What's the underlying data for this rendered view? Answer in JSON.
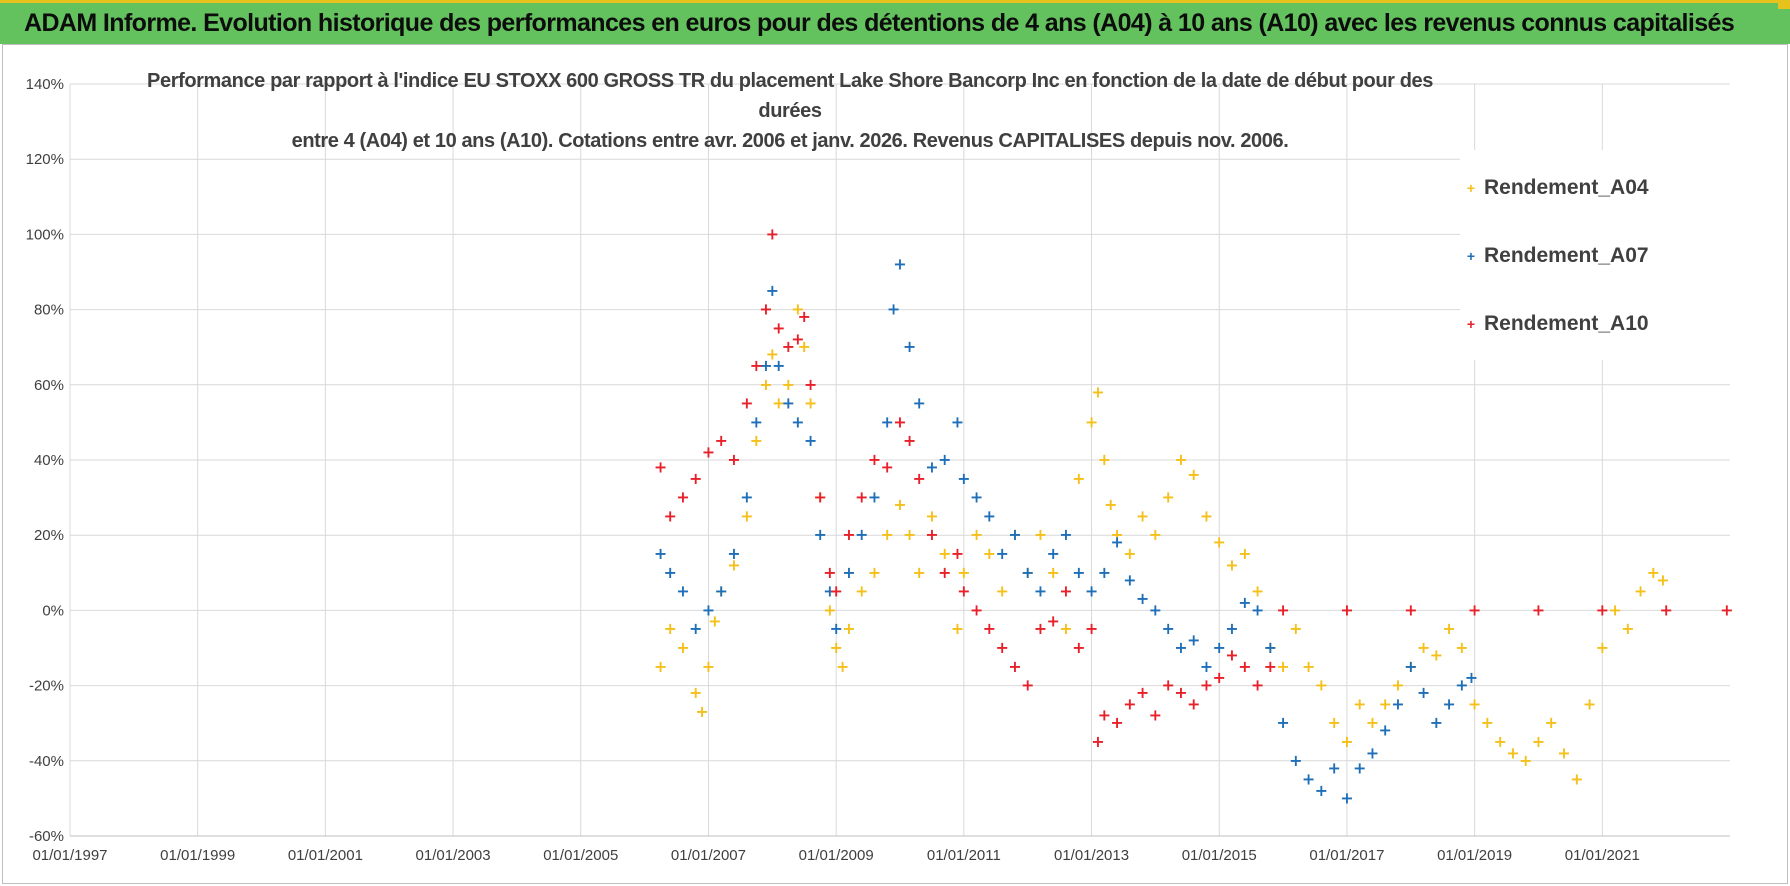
{
  "header": {
    "title": "ADAM Informe. Evolution historique des performances en euros pour des détentions de 4 ans (A04) à 10 ans (A10) avec les revenus connus capitalisés"
  },
  "chart_data": {
    "type": "scatter",
    "title_line1": "Performance par rapport à l'indice EU STOXX 600 GROSS TR  du placement Lake Shore Bancorp Inc en fonction de la date de début pour des durées",
    "title_line2": "entre 4 (A04) et 10 ans (A10).  Cotations entre avr. 2006 et janv. 2026. Revenus CAPITALISES depuis nov. 2006.",
    "xlabel": "",
    "ylabel": "",
    "xlim": [
      1997.0,
      2023.0
    ],
    "ylim": [
      -60,
      140
    ],
    "x_ticks": [
      "01/01/1997",
      "01/01/1999",
      "01/01/2001",
      "01/01/2003",
      "01/01/2005",
      "01/01/2007",
      "01/01/2009",
      "01/01/2011",
      "01/01/2013",
      "01/01/2015",
      "01/01/2017",
      "01/01/2019",
      "01/01/2021"
    ],
    "y_ticks": [
      "140%",
      "120%",
      "100%",
      "80%",
      "60%",
      "40%",
      "20%",
      "0%",
      "-20%",
      "-40%",
      "-60%"
    ],
    "legend_position": "top-right",
    "series": [
      {
        "name": "Rendement_A04",
        "color": "#f5c01a",
        "points": [
          [
            2006.25,
            -15
          ],
          [
            2006.4,
            -5
          ],
          [
            2006.6,
            -10
          ],
          [
            2006.8,
            -22
          ],
          [
            2006.9,
            -27
          ],
          [
            2007.0,
            -15
          ],
          [
            2007.1,
            -3
          ],
          [
            2007.2,
            5
          ],
          [
            2007.4,
            12
          ],
          [
            2007.6,
            25
          ],
          [
            2007.75,
            45
          ],
          [
            2007.9,
            60
          ],
          [
            2008.0,
            68
          ],
          [
            2008.1,
            55
          ],
          [
            2008.25,
            60
          ],
          [
            2008.4,
            80
          ],
          [
            2008.5,
            70
          ],
          [
            2008.6,
            55
          ],
          [
            2008.75,
            30
          ],
          [
            2008.9,
            0
          ],
          [
            2009.0,
            -10
          ],
          [
            2009.1,
            -15
          ],
          [
            2009.2,
            -5
          ],
          [
            2009.4,
            5
          ],
          [
            2009.6,
            10
          ],
          [
            2009.8,
            20
          ],
          [
            2010.0,
            28
          ],
          [
            2010.15,
            20
          ],
          [
            2010.3,
            10
          ],
          [
            2010.5,
            25
          ],
          [
            2010.7,
            15
          ],
          [
            2010.9,
            -5
          ],
          [
            2011.0,
            10
          ],
          [
            2011.2,
            20
          ],
          [
            2011.4,
            15
          ],
          [
            2011.6,
            5
          ],
          [
            2011.8,
            20
          ],
          [
            2012.0,
            10
          ],
          [
            2012.2,
            20
          ],
          [
            2012.4,
            10
          ],
          [
            2012.6,
            -5
          ],
          [
            2012.8,
            35
          ],
          [
            2013.0,
            50
          ],
          [
            2013.1,
            58
          ],
          [
            2013.2,
            40
          ],
          [
            2013.3,
            28
          ],
          [
            2013.4,
            20
          ],
          [
            2013.6,
            15
          ],
          [
            2013.8,
            25
          ],
          [
            2014.0,
            20
          ],
          [
            2014.2,
            30
          ],
          [
            2014.4,
            40
          ],
          [
            2014.6,
            36
          ],
          [
            2014.8,
            25
          ],
          [
            2015.0,
            18
          ],
          [
            2015.2,
            12
          ],
          [
            2015.4,
            15
          ],
          [
            2015.6,
            5
          ],
          [
            2015.8,
            -10
          ],
          [
            2016.0,
            -15
          ],
          [
            2016.2,
            -5
          ],
          [
            2016.4,
            -15
          ],
          [
            2016.6,
            -20
          ],
          [
            2016.8,
            -30
          ],
          [
            2017.0,
            -35
          ],
          [
            2017.2,
            -25
          ],
          [
            2017.4,
            -30
          ],
          [
            2017.6,
            -25
          ],
          [
            2017.8,
            -20
          ],
          [
            2018.0,
            -15
          ],
          [
            2018.2,
            -10
          ],
          [
            2018.4,
            -12
          ],
          [
            2018.6,
            -5
          ],
          [
            2018.8,
            -10
          ],
          [
            2019.0,
            -25
          ],
          [
            2019.2,
            -30
          ],
          [
            2019.4,
            -35
          ],
          [
            2019.6,
            -38
          ],
          [
            2019.8,
            -40
          ],
          [
            2020.0,
            -35
          ],
          [
            2020.2,
            -30
          ],
          [
            2020.4,
            -38
          ],
          [
            2020.6,
            -45
          ],
          [
            2020.8,
            -25
          ],
          [
            2021.0,
            -10
          ],
          [
            2021.2,
            0
          ],
          [
            2021.4,
            -5
          ],
          [
            2021.6,
            5
          ],
          [
            2021.8,
            10
          ],
          [
            2021.95,
            8
          ]
        ]
      },
      {
        "name": "Rendement_A07",
        "color": "#1f6fb8",
        "points": [
          [
            2006.25,
            15
          ],
          [
            2006.4,
            10
          ],
          [
            2006.6,
            5
          ],
          [
            2006.8,
            -5
          ],
          [
            2007.0,
            0
          ],
          [
            2007.2,
            5
          ],
          [
            2007.4,
            15
          ],
          [
            2007.6,
            30
          ],
          [
            2007.75,
            50
          ],
          [
            2007.9,
            65
          ],
          [
            2008.0,
            85
          ],
          [
            2008.1,
            65
          ],
          [
            2008.25,
            55
          ],
          [
            2008.4,
            50
          ],
          [
            2008.6,
            45
          ],
          [
            2008.75,
            20
          ],
          [
            2008.9,
            5
          ],
          [
            2009.0,
            -5
          ],
          [
            2009.2,
            10
          ],
          [
            2009.4,
            20
          ],
          [
            2009.6,
            30
          ],
          [
            2009.8,
            50
          ],
          [
            2009.9,
            80
          ],
          [
            2010.0,
            92
          ],
          [
            2010.15,
            70
          ],
          [
            2010.3,
            55
          ],
          [
            2010.5,
            38
          ],
          [
            2010.7,
            40
          ],
          [
            2010.9,
            50
          ],
          [
            2011.0,
            35
          ],
          [
            2011.2,
            30
          ],
          [
            2011.4,
            25
          ],
          [
            2011.6,
            15
          ],
          [
            2011.8,
            20
          ],
          [
            2012.0,
            10
          ],
          [
            2012.2,
            5
          ],
          [
            2012.4,
            15
          ],
          [
            2012.6,
            20
          ],
          [
            2012.8,
            10
          ],
          [
            2013.0,
            5
          ],
          [
            2013.2,
            10
          ],
          [
            2013.4,
            18
          ],
          [
            2013.6,
            8
          ],
          [
            2013.8,
            3
          ],
          [
            2014.0,
            0
          ],
          [
            2014.2,
            -5
          ],
          [
            2014.4,
            -10
          ],
          [
            2014.6,
            -8
          ],
          [
            2014.8,
            -15
          ],
          [
            2015.0,
            -10
          ],
          [
            2015.2,
            -5
          ],
          [
            2015.4,
            2
          ],
          [
            2015.6,
            0
          ],
          [
            2015.8,
            -10
          ],
          [
            2016.0,
            -30
          ],
          [
            2016.2,
            -40
          ],
          [
            2016.4,
            -45
          ],
          [
            2016.6,
            -48
          ],
          [
            2016.8,
            -42
          ],
          [
            2017.0,
            -50
          ],
          [
            2017.2,
            -42
          ],
          [
            2017.4,
            -38
          ],
          [
            2017.6,
            -32
          ],
          [
            2017.8,
            -25
          ],
          [
            2018.0,
            -15
          ],
          [
            2018.2,
            -22
          ],
          [
            2018.4,
            -30
          ],
          [
            2018.6,
            -25
          ],
          [
            2018.8,
            -20
          ],
          [
            2018.95,
            -18
          ]
        ]
      },
      {
        "name": "Rendement_A10",
        "color": "#e8202a",
        "points": [
          [
            2006.25,
            38
          ],
          [
            2006.4,
            25
          ],
          [
            2006.6,
            30
          ],
          [
            2006.8,
            35
          ],
          [
            2007.0,
            42
          ],
          [
            2007.2,
            45
          ],
          [
            2007.4,
            40
          ],
          [
            2007.6,
            55
          ],
          [
            2007.75,
            65
          ],
          [
            2007.9,
            80
          ],
          [
            2008.0,
            100
          ],
          [
            2008.1,
            75
          ],
          [
            2008.25,
            70
          ],
          [
            2008.4,
            72
          ],
          [
            2008.5,
            78
          ],
          [
            2008.6,
            60
          ],
          [
            2008.75,
            30
          ],
          [
            2008.9,
            10
          ],
          [
            2009.0,
            5
          ],
          [
            2009.2,
            20
          ],
          [
            2009.4,
            30
          ],
          [
            2009.6,
            40
          ],
          [
            2009.8,
            38
          ],
          [
            2010.0,
            50
          ],
          [
            2010.15,
            45
          ],
          [
            2010.3,
            35
          ],
          [
            2010.5,
            20
          ],
          [
            2010.7,
            10
          ],
          [
            2010.9,
            15
          ],
          [
            2011.0,
            5
          ],
          [
            2011.2,
            0
          ],
          [
            2011.4,
            -5
          ],
          [
            2011.6,
            -10
          ],
          [
            2011.8,
            -15
          ],
          [
            2012.0,
            -20
          ],
          [
            2012.2,
            -5
          ],
          [
            2012.4,
            -3
          ],
          [
            2012.6,
            5
          ],
          [
            2012.8,
            -10
          ],
          [
            2013.0,
            -5
          ],
          [
            2013.1,
            -35
          ],
          [
            2013.2,
            -28
          ],
          [
            2013.4,
            -30
          ],
          [
            2013.6,
            -25
          ],
          [
            2013.8,
            -22
          ],
          [
            2014.0,
            -28
          ],
          [
            2014.2,
            -20
          ],
          [
            2014.4,
            -22
          ],
          [
            2014.6,
            -25
          ],
          [
            2014.8,
            -20
          ],
          [
            2015.0,
            -18
          ],
          [
            2015.2,
            -12
          ],
          [
            2015.4,
            -15
          ],
          [
            2015.6,
            -20
          ],
          [
            2015.8,
            -15
          ],
          [
            2016.0,
            0
          ],
          [
            2017.0,
            0
          ],
          [
            2018.0,
            0
          ],
          [
            2019.0,
            0
          ],
          [
            2020.0,
            0
          ],
          [
            2021.0,
            0
          ],
          [
            2022.0,
            0
          ],
          [
            2022.95,
            0
          ]
        ]
      }
    ]
  }
}
